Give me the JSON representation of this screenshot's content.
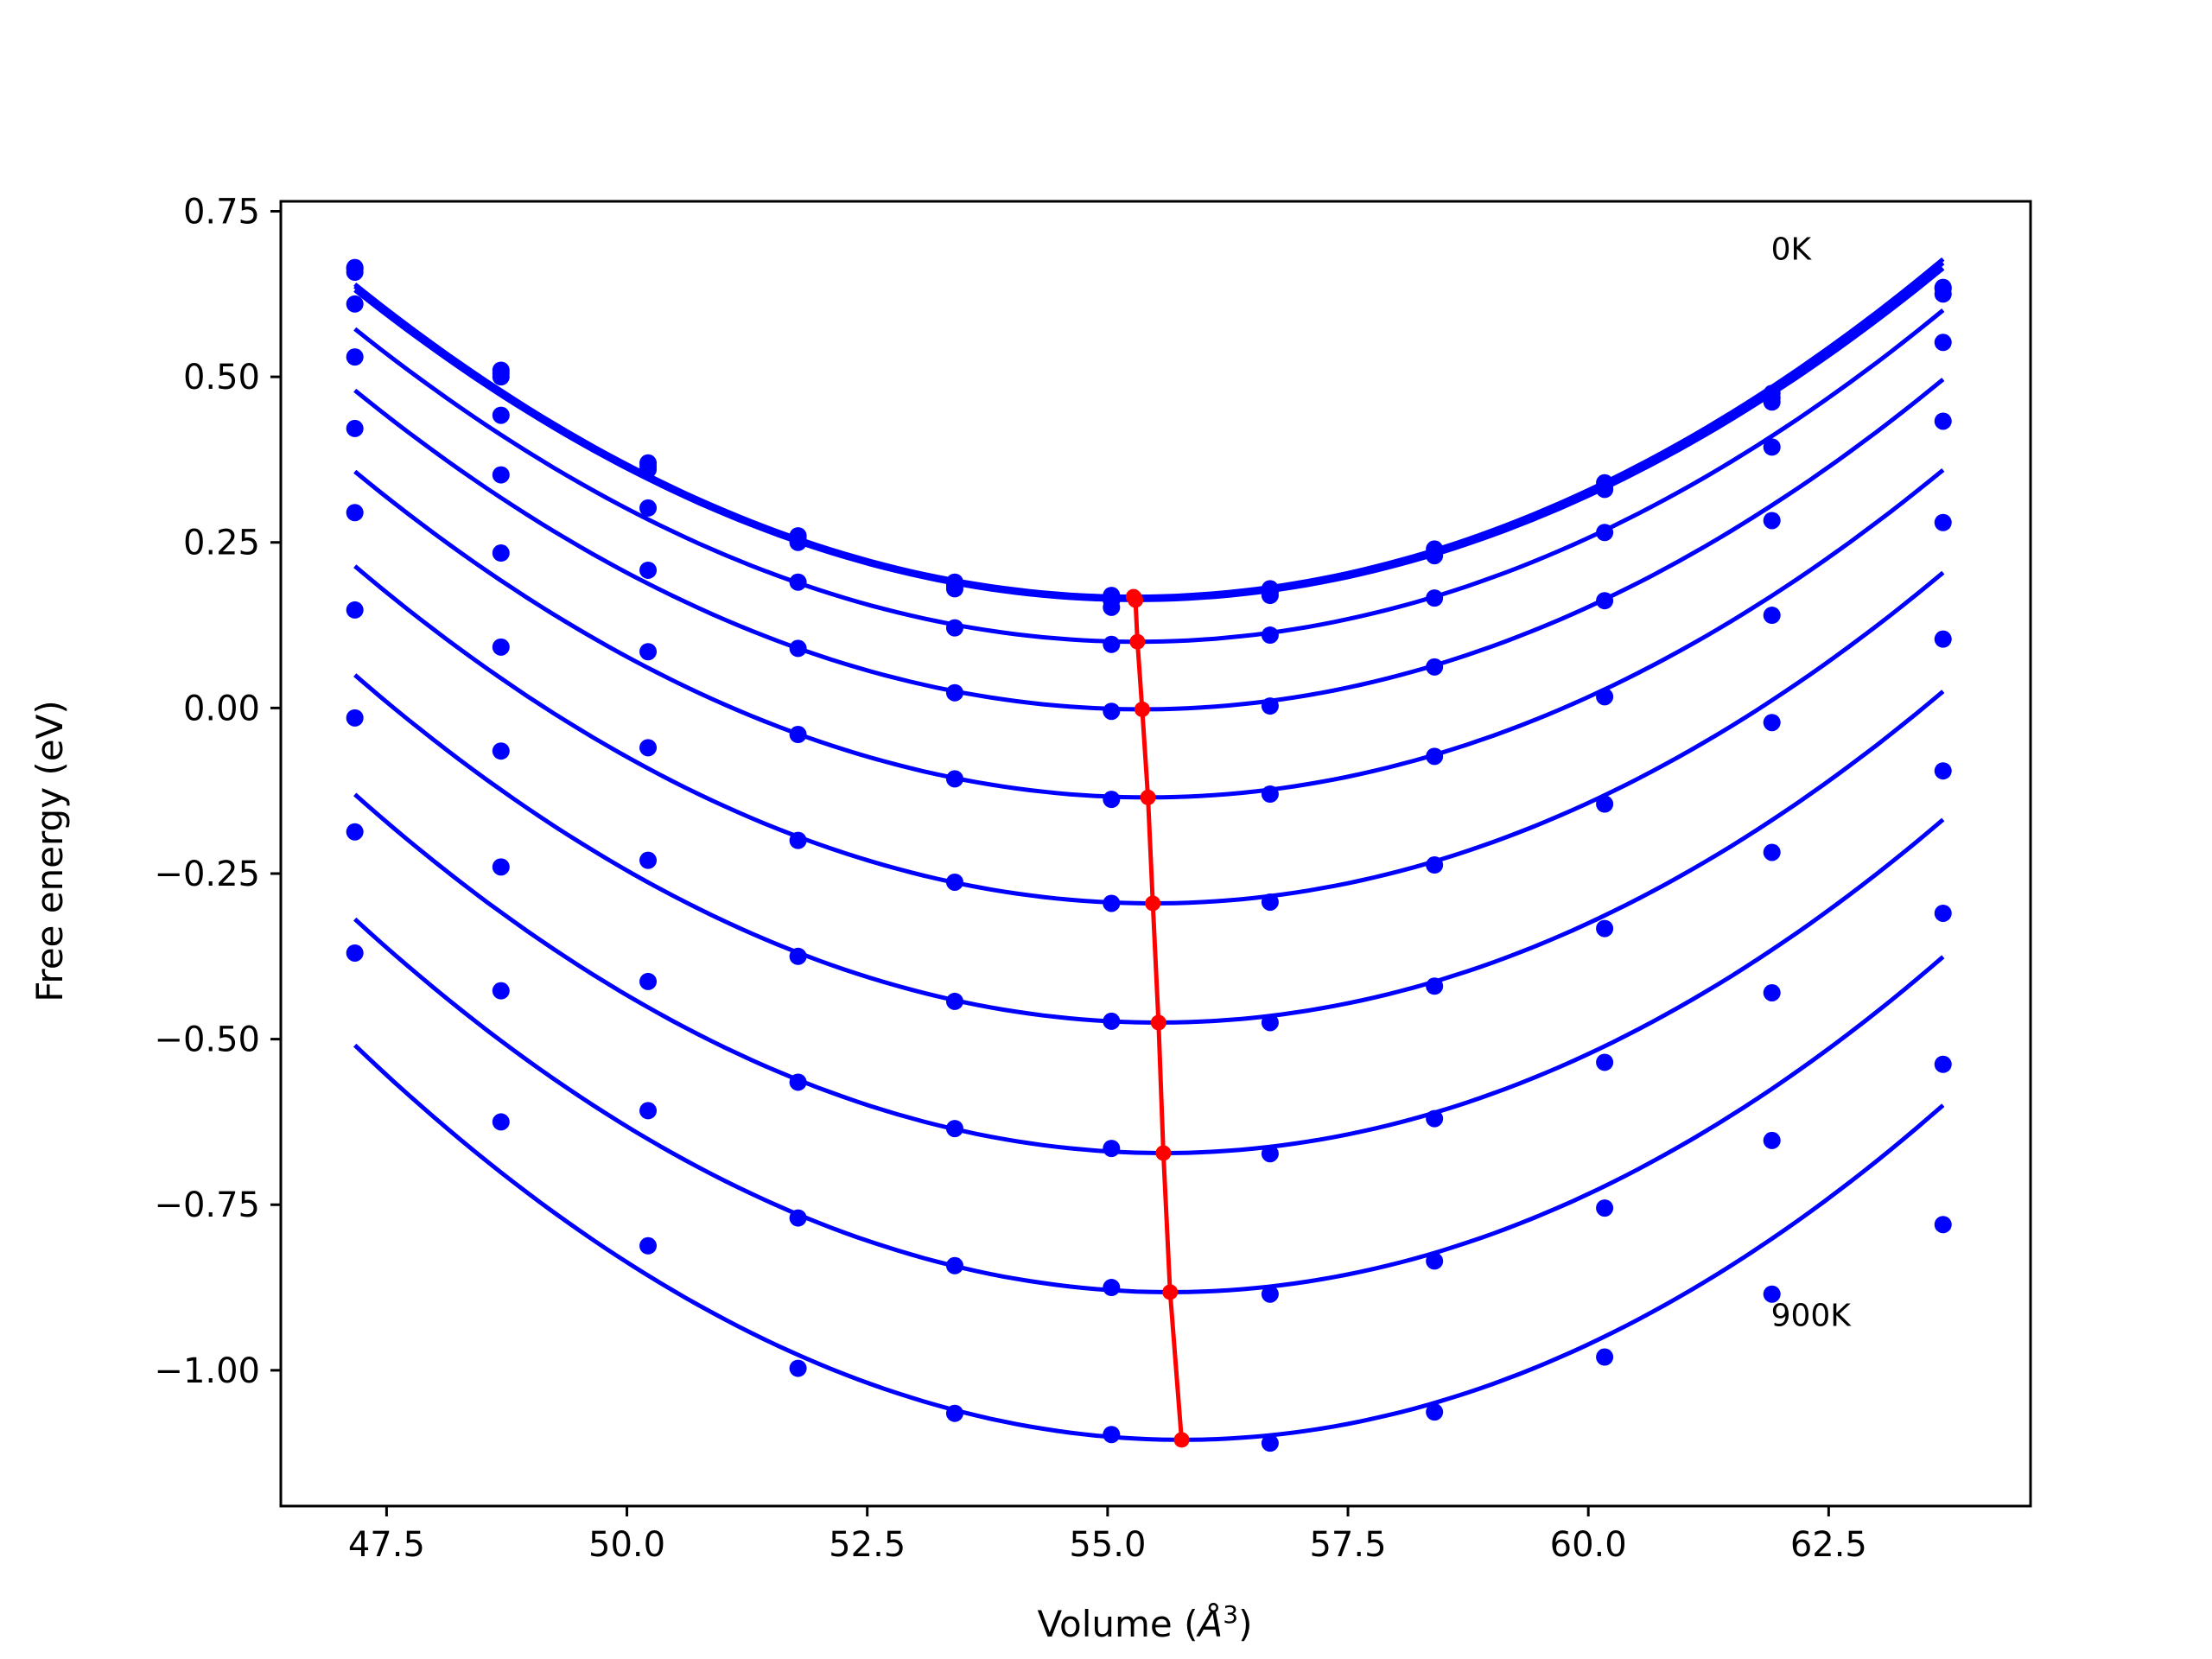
{
  "chart_data": {
    "type": "line",
    "title": "",
    "xlabel": "Volume (Å³)",
    "xlabel_main": "Volume (",
    "xlabel_unit": "Å",
    "xlabel_sup": "3",
    "xlabel_close": ")",
    "ylabel": "Free energy (eV)",
    "xlim": [
      46.4,
      64.6
    ],
    "ylim": [
      -1.205,
      0.765
    ],
    "xticks": [
      47.5,
      50.0,
      52.5,
      55.0,
      57.5,
      60.0,
      62.5
    ],
    "xtick_labels": [
      "47.5",
      "50.0",
      "52.5",
      "55.0",
      "57.5",
      "60.0",
      "62.5"
    ],
    "yticks": [
      0.75,
      0.5,
      0.25,
      0.0,
      -0.25,
      -0.5,
      -0.75,
      -1.0
    ],
    "ytick_labels": [
      "0.75",
      "0.50",
      "0.25",
      "0.00",
      "−0.25",
      "−0.50",
      "−0.75",
      "−1.00"
    ],
    "grid": false,
    "legend": false,
    "annotations": [
      {
        "text": "0K",
        "x": 61.9,
        "y": 0.695
      },
      {
        "text": "900K",
        "x": 61.9,
        "y": -0.915
      }
    ],
    "volumes": [
      47.17,
      48.69,
      50.22,
      51.78,
      53.41,
      55.04,
      56.69,
      58.4,
      60.17,
      61.91,
      63.69
    ],
    "series": [
      {
        "min_x": 55.27,
        "min_y": 0.168,
        "values": [
          0.665,
          0.51,
          0.37,
          0.26,
          0.19,
          0.17,
          0.18,
          0.24,
          0.34,
          0.475,
          0.635
        ]
      },
      {
        "min_x": 55.28,
        "min_y": 0.166,
        "values": [
          0.663,
          0.505,
          0.365,
          0.255,
          0.185,
          0.162,
          0.175,
          0.235,
          0.335,
          0.468,
          0.633
        ]
      },
      {
        "min_x": 55.29,
        "min_y": 0.163,
        "values": [
          0.658,
          0.5,
          0.36,
          0.25,
          0.18,
          0.152,
          0.17,
          0.23,
          0.33,
          0.462,
          0.625
        ]
      },
      {
        "min_x": 55.31,
        "min_y": 0.1,
        "values": [
          0.61,
          0.442,
          0.302,
          0.19,
          0.121,
          0.096,
          0.11,
          0.166,
          0.265,
          0.394,
          0.552
        ]
      },
      {
        "min_x": 55.36,
        "min_y": -0.002,
        "values": [
          0.53,
          0.352,
          0.208,
          0.09,
          0.023,
          -0.005,
          0.003,
          0.062,
          0.162,
          0.283,
          0.433
        ]
      },
      {
        "min_x": 55.42,
        "min_y": -0.135,
        "values": [
          0.422,
          0.234,
          0.085,
          -0.04,
          -0.107,
          -0.138,
          -0.13,
          -0.073,
          0.017,
          0.14,
          0.28
        ]
      },
      {
        "min_x": 55.47,
        "min_y": -0.295,
        "values": [
          0.295,
          0.092,
          -0.06,
          -0.2,
          -0.263,
          -0.295,
          -0.293,
          -0.237,
          -0.145,
          -0.022,
          0.104
        ]
      },
      {
        "min_x": 55.53,
        "min_y": -0.475,
        "values": [
          0.148,
          -0.065,
          -0.23,
          -0.375,
          -0.443,
          -0.473,
          -0.475,
          -0.42,
          -0.333,
          -0.218,
          -0.095
        ]
      },
      {
        "min_x": 55.58,
        "min_y": -0.672,
        "values": [
          -0.015,
          -0.24,
          -0.413,
          -0.565,
          -0.635,
          -0.665,
          -0.673,
          -0.62,
          -0.535,
          -0.43,
          -0.31
        ]
      },
      {
        "min_x": 55.65,
        "min_y": -0.882,
        "values": [
          -0.187,
          -0.427,
          -0.608,
          -0.77,
          -0.842,
          -0.875,
          -0.885,
          -0.835,
          -0.755,
          -0.653,
          -0.538
        ]
      },
      {
        "min_x": 55.77,
        "min_y": -1.105,
        "values": [
          -0.37,
          -0.625,
          -0.812,
          -0.997,
          -1.065,
          -1.097,
          -1.11,
          -1.063,
          -0.98,
          -0.885,
          -0.78
        ]
      }
    ],
    "colors": {
      "curves": "#0000ff",
      "minima": "#ff0000",
      "axes": "#000000"
    }
  }
}
